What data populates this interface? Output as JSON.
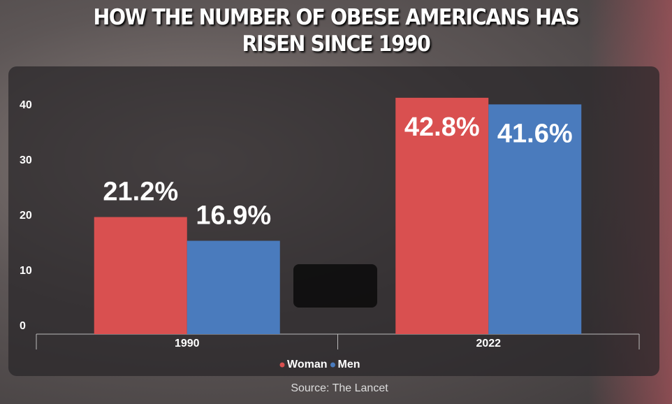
{
  "chart_data": {
    "type": "bar",
    "title": "HOW THE NUMBER OF OBESE AMERICANS HAS RISEN SINCE 1990",
    "source": "Source: The Lancet",
    "categories": [
      "1990",
      "2022"
    ],
    "series": [
      {
        "name": "Woman",
        "color": "#d95050",
        "values": [
          21.2,
          42.8
        ],
        "value_labels": [
          "21.2%",
          "42.8%"
        ]
      },
      {
        "name": "Men",
        "color": "#4a7bbd",
        "values": [
          16.9,
          41.6
        ],
        "value_labels": [
          "16.9%",
          "41.6%"
        ]
      }
    ],
    "ylim": [
      0,
      45
    ],
    "yticks": [
      0,
      10,
      20,
      30,
      40
    ]
  }
}
